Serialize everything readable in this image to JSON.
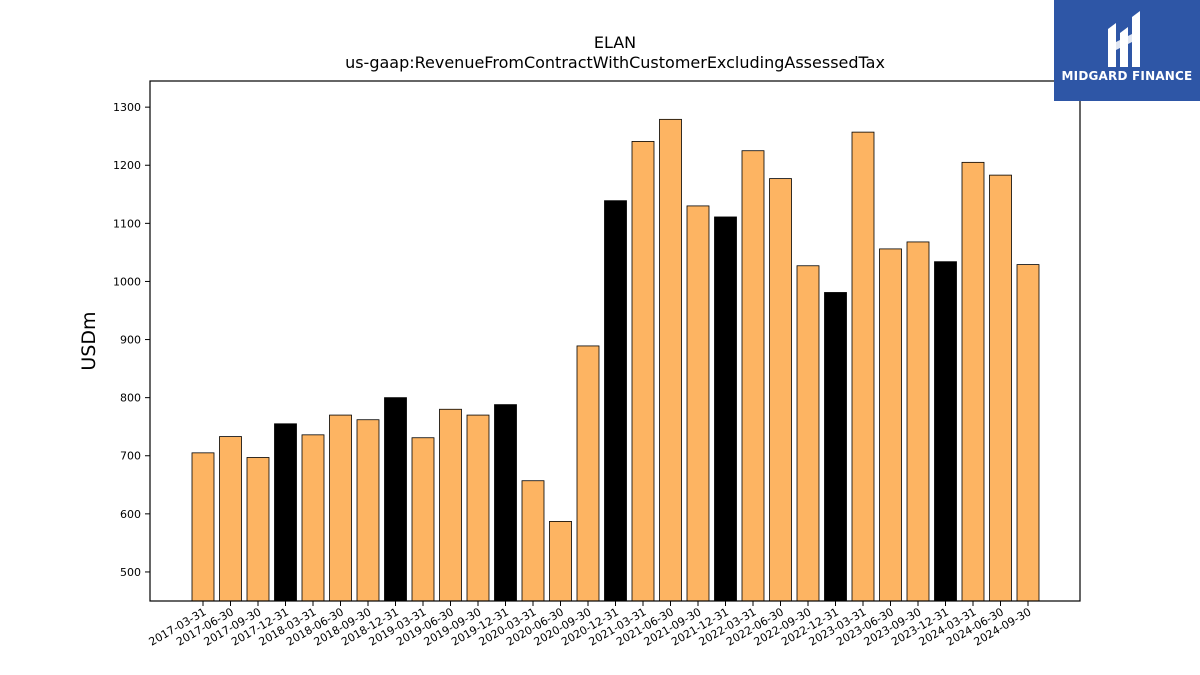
{
  "chart_data": {
    "type": "bar",
    "title": "ELAN",
    "subtitle": "us-gaap:RevenueFromContractWithCustomerExcludingAssessedTax",
    "ylabel": "USDm",
    "xlabel": "",
    "ylim": [
      450,
      1345
    ],
    "yticks": [
      500,
      600,
      700,
      800,
      900,
      1000,
      1100,
      1200,
      1300
    ],
    "categories": [
      "2017-03-31",
      "2017-06-30",
      "2017-09-30",
      "2017-12-31",
      "2018-03-31",
      "2018-06-30",
      "2018-09-30",
      "2018-12-31",
      "2019-03-31",
      "2019-06-30",
      "2019-09-30",
      "2019-12-31",
      "2020-03-31",
      "2020-06-30",
      "2020-09-30",
      "2020-12-31",
      "2021-03-31",
      "2021-06-30",
      "2021-09-30",
      "2021-12-31",
      "2022-03-31",
      "2022-06-30",
      "2022-09-30",
      "2022-12-31",
      "2023-03-31",
      "2023-06-30",
      "2023-09-30",
      "2023-12-31",
      "2024-03-31",
      "2024-06-30",
      "2024-09-30"
    ],
    "values": [
      705,
      733,
      697,
      755,
      736,
      770,
      762,
      800,
      731,
      780,
      770,
      788,
      657,
      587,
      889,
      1139,
      1241,
      1279,
      1130,
      1111,
      1225,
      1177,
      1027,
      981,
      1257,
      1056,
      1068,
      1034,
      1205,
      1183,
      1029
    ],
    "highlight_categories": [
      "2017-12-31",
      "2018-12-31",
      "2019-12-31",
      "2020-12-31",
      "2021-12-31",
      "2022-12-31",
      "2023-12-31"
    ],
    "colors": {
      "bar": "#fdb462",
      "highlight": "#000000",
      "edge": "#000000"
    },
    "grid": false,
    "legend": "none"
  },
  "logo": {
    "text": "MIDGARD FINANCE",
    "background": "#2e56a6"
  }
}
